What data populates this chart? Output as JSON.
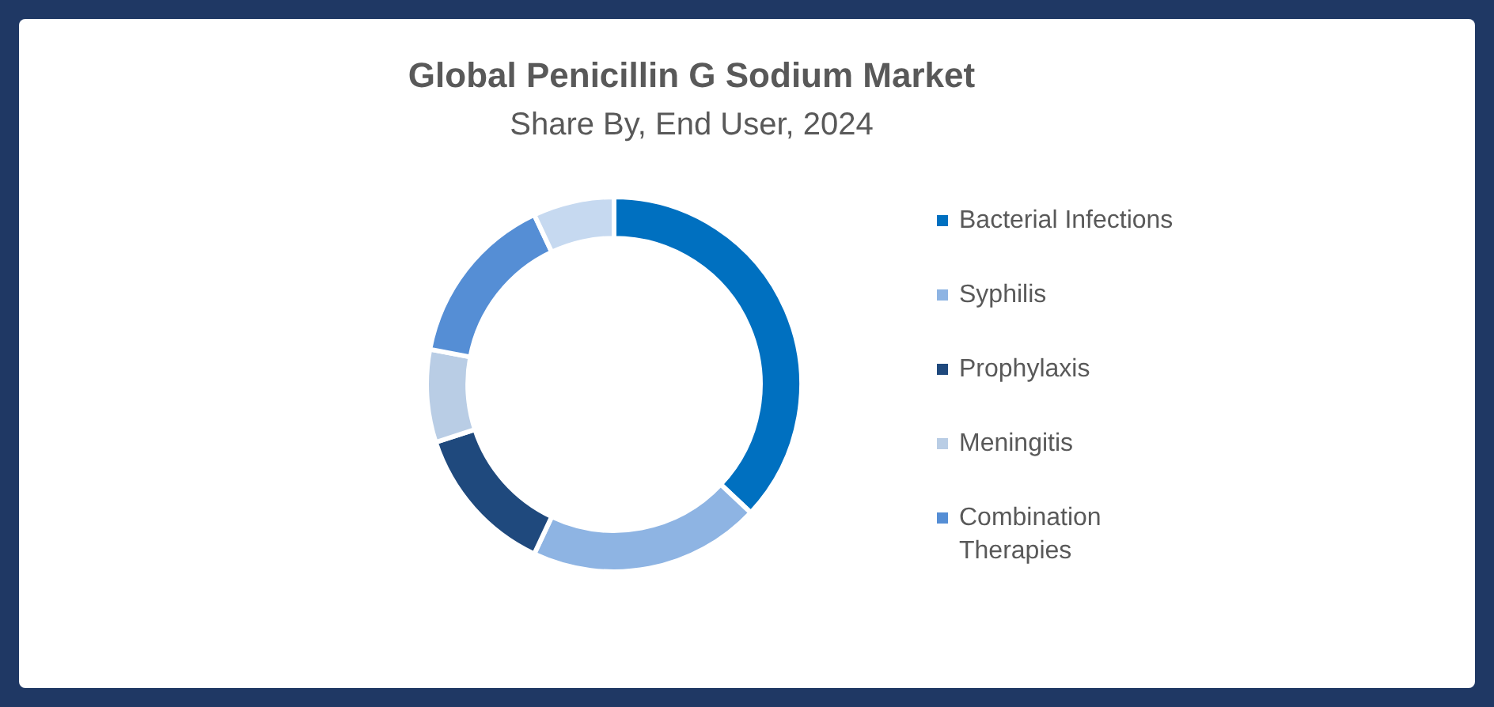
{
  "chart_data": {
    "type": "donut",
    "title": "Global Penicillin G Sodium Market",
    "subtitle": "Share By, End User, 2024",
    "categories": [
      "Bacterial Infections",
      "Syphilis",
      "Prophylaxis",
      "Meningitis",
      "Combination Therapies",
      null
    ],
    "values": [
      37,
      20,
      13,
      8,
      15,
      7
    ],
    "colors": [
      "#0070c0",
      "#8eb4e3",
      "#1f497d",
      "#b9cde5",
      "#558ed5",
      "#c6d9f0"
    ],
    "legend": "right"
  }
}
